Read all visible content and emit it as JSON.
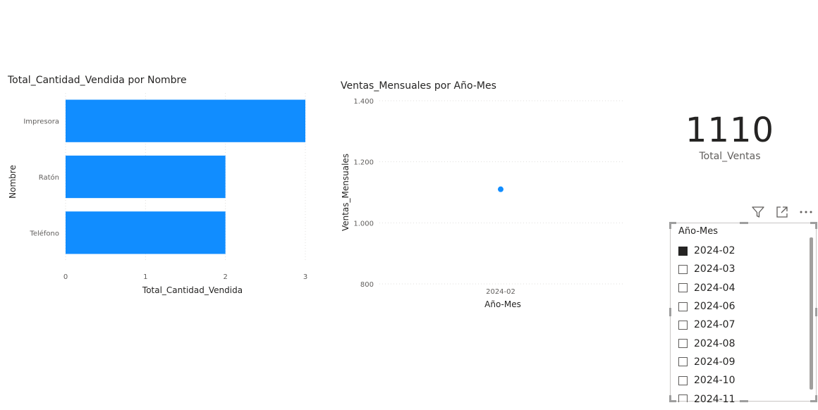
{
  "bar_chart": {
    "title": "Total_Cantidad_Vendida por Nombre",
    "xlabel": "Total_Cantidad_Vendida",
    "ylabel": "Nombre",
    "color": "#118DFF"
  },
  "line_chart": {
    "title": "Ventas_Mensuales por Año-Mes",
    "xlabel": "Año-Mes",
    "ylabel": "Ventas_Mensuales",
    "color": "#118DFF"
  },
  "chart_data": [
    {
      "type": "bar",
      "orientation": "horizontal",
      "title": "Total_Cantidad_Vendida por Nombre",
      "categories": [
        "Impresora",
        "Ratón",
        "Teléfono"
      ],
      "values": [
        3,
        2,
        2
      ],
      "xlabel": "Total_Cantidad_Vendida",
      "ylabel": "Nombre",
      "xlim": [
        0,
        3
      ],
      "xticks": [
        "0",
        "1",
        "2",
        "3"
      ],
      "grid": true
    },
    {
      "type": "scatter",
      "title": "Ventas_Mensuales por Año-Mes",
      "categories": [
        "2024-02"
      ],
      "values": [
        1110
      ],
      "xlabel": "Año-Mes",
      "ylabel": "Ventas_Mensuales",
      "ylim": [
        800,
        1400
      ],
      "yticks": [
        "800",
        "1.000",
        "1.200",
        "1.400"
      ],
      "grid": true
    }
  ],
  "card": {
    "value": "1110",
    "label": "Total_Ventas"
  },
  "toolbar": {
    "filter_icon": "filter-icon",
    "focus_icon": "focus-mode-icon",
    "more_icon": "more-options-icon"
  },
  "slicer": {
    "header": "Año-Mes",
    "items": [
      {
        "label": "2024-02",
        "checked": true
      },
      {
        "label": "2024-03",
        "checked": false
      },
      {
        "label": "2024-04",
        "checked": false
      },
      {
        "label": "2024-06",
        "checked": false
      },
      {
        "label": "2024-07",
        "checked": false
      },
      {
        "label": "2024-08",
        "checked": false
      },
      {
        "label": "2024-09",
        "checked": false
      },
      {
        "label": "2024-10",
        "checked": false
      },
      {
        "label": "2024-11",
        "checked": false
      }
    ]
  }
}
